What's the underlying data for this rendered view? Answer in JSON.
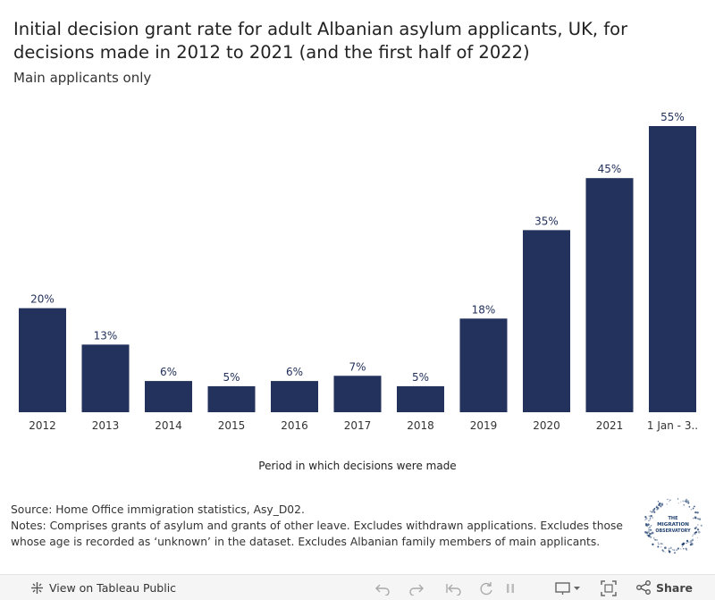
{
  "header": {
    "title": "Initial decision grant rate for adult Albanian asylum applicants, UK, for decisions made in 2012 to 2021 (and the first half of 2022)",
    "subtitle": "Main applicants only"
  },
  "chart_data": {
    "type": "bar",
    "categories": [
      "2012",
      "2013",
      "2014",
      "2015",
      "2016",
      "2017",
      "2018",
      "2019",
      "2020",
      "2021",
      "1 Jan - 3.."
    ],
    "values": [
      20,
      13,
      6,
      5,
      6,
      7,
      5,
      18,
      35,
      45,
      55
    ],
    "value_labels": [
      "20%",
      "13%",
      "6%",
      "5%",
      "6%",
      "7%",
      "5%",
      "18%",
      "35%",
      "45%",
      "55%"
    ],
    "xlabel": "Period in which decisions were made",
    "ylabel": "",
    "ylim": [
      0,
      55
    ],
    "grid": false,
    "bar_color": "#23325c"
  },
  "notes": {
    "source": "Source: Home Office immigration statistics, Asy_D02.",
    "text": "Notes: Comprises grants of asylum and grants of other leave. Excludes withdrawn applications. Excludes those whose age is recorded as ‘unknown’ in the dataset. Excludes Albanian family members of main applicants."
  },
  "logo": {
    "line1": "THE",
    "line2": "MIGRATION",
    "line3": "OBSERVATORY",
    "color": "#1f3f6e"
  },
  "footer": {
    "view_label": "View on Tableau Public",
    "share_label": "Share",
    "icons": [
      "tableau-icon",
      "undo-icon",
      "redo-icon",
      "revert-icon",
      "refresh-icon",
      "pause-icon",
      "download-icon",
      "fullscreen-icon",
      "share-icon"
    ]
  }
}
